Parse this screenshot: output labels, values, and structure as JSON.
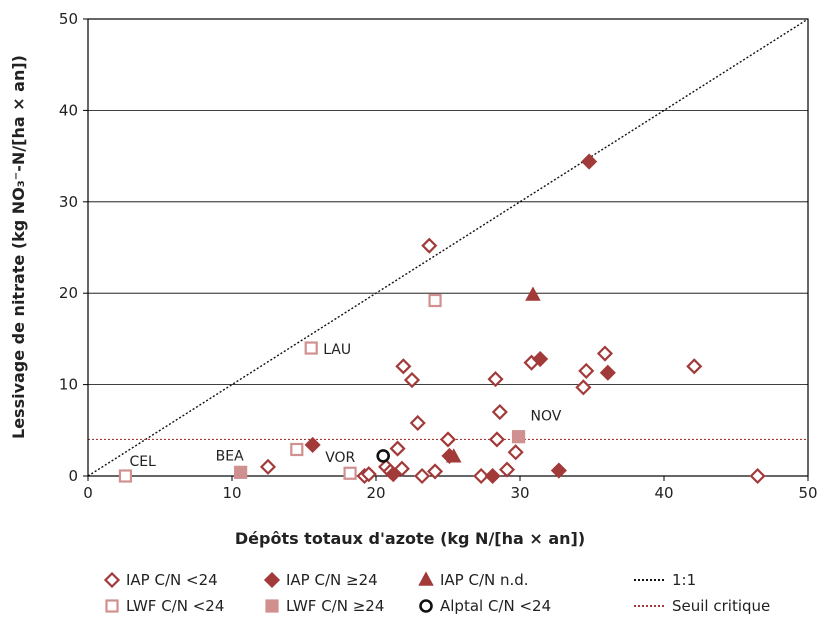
{
  "colors": {
    "dark": "#A23A3A",
    "light": "#D09090",
    "black": "#111111",
    "grid": "#000000",
    "threshold": "#A23A3A"
  },
  "chart_data": {
    "type": "scatter",
    "xlabel": "Dépôts totaux d'azote (kg N/[ha × an])",
    "ylabel": "Lessivage de nitrate (kg NO₃⁻-N/[ha × an])",
    "xlim": [
      0,
      50
    ],
    "ylim": [
      0,
      50
    ],
    "xticks": [
      "0",
      "10",
      "20",
      "30",
      "40",
      "50"
    ],
    "yticks": [
      "0",
      "10",
      "20",
      "30",
      "40",
      "50"
    ],
    "grid": "horizontal",
    "legend_position": "bottom",
    "threshold": 4,
    "series": [
      {
        "name": "IAP C/N <24",
        "marker": "diamond-open",
        "color": "#A23A3A",
        "points": [
          [
            12.5,
            1.0
          ],
          [
            19.2,
            0.0
          ],
          [
            19.5,
            0.2
          ],
          [
            20.7,
            1.0
          ],
          [
            21.0,
            0.5
          ],
          [
            21.5,
            3.0
          ],
          [
            21.8,
            0.8
          ],
          [
            21.9,
            12.0
          ],
          [
            22.5,
            10.5
          ],
          [
            22.9,
            5.8
          ],
          [
            23.2,
            0.0
          ],
          [
            23.7,
            25.2
          ],
          [
            24.1,
            0.5
          ],
          [
            25.0,
            4.0
          ],
          [
            27.3,
            0.0
          ],
          [
            28.3,
            10.6
          ],
          [
            28.4,
            4.0
          ],
          [
            28.6,
            7.0
          ],
          [
            29.1,
            0.7
          ],
          [
            29.7,
            2.6
          ],
          [
            30.8,
            12.4
          ],
          [
            34.4,
            9.7
          ],
          [
            34.6,
            11.5
          ],
          [
            35.9,
            13.4
          ],
          [
            42.1,
            12.0
          ],
          [
            46.5,
            0.0
          ]
        ]
      },
      {
        "name": "IAP C/N ≥24",
        "marker": "diamond-filled",
        "color": "#A23A3A",
        "points": [
          [
            15.6,
            3.4
          ],
          [
            21.2,
            0.2
          ],
          [
            25.1,
            2.2
          ],
          [
            28.1,
            0.0
          ],
          [
            31.4,
            12.8
          ],
          [
            32.7,
            0.6
          ],
          [
            34.8,
            34.4
          ],
          [
            36.1,
            11.3
          ]
        ]
      },
      {
        "name": "IAP C/N n.d.",
        "marker": "triangle",
        "color": "#A23A3A",
        "points": [
          [
            25.4,
            2.1
          ],
          [
            30.9,
            19.8
          ]
        ]
      },
      {
        "name": "LWF C/N <24",
        "marker": "square-open",
        "color": "#D09090",
        "points": [
          [
            2.6,
            0.0
          ],
          [
            14.5,
            2.9
          ],
          [
            15.5,
            14.0
          ],
          [
            18.2,
            0.3
          ],
          [
            24.1,
            19.2
          ]
        ]
      },
      {
        "name": "LWF C/N ≥24",
        "marker": "square-filled",
        "color": "#D09090",
        "points": [
          [
            10.6,
            0.4
          ],
          [
            29.9,
            4.3
          ]
        ]
      },
      {
        "name": "Alptal C/N <24",
        "marker": "circle-open",
        "color": "#111111",
        "points": [
          [
            20.5,
            2.2
          ]
        ]
      }
    ],
    "annotations": [
      {
        "text": "CEL",
        "x": 2.6,
        "y": 0.0
      },
      {
        "text": "BEA",
        "x": 10.6,
        "y": 0.4
      },
      {
        "text": "LAU",
        "x": 15.5,
        "y": 14.0
      },
      {
        "text": "VOR",
        "x": 20.5,
        "y": 2.2
      },
      {
        "text": "NOV",
        "x": 29.9,
        "y": 4.3
      }
    ],
    "legend": [
      {
        "label": "IAP C/N <24",
        "marker": "diamond-open",
        "color": "#A23A3A"
      },
      {
        "label": "IAP C/N ≥24",
        "marker": "diamond-filled",
        "color": "#A23A3A"
      },
      {
        "label": "IAP C/N n.d.",
        "marker": "triangle",
        "color": "#A23A3A"
      },
      {
        "label": "1:1",
        "marker": "dotted-line",
        "color": "#111111"
      },
      {
        "label": "LWF C/N <24",
        "marker": "square-open",
        "color": "#D09090"
      },
      {
        "label": "LWF C/N ≥24",
        "marker": "square-filled",
        "color": "#D09090"
      },
      {
        "label": "Alptal C/N <24",
        "marker": "circle-open",
        "color": "#111111"
      },
      {
        "label": "Seuil critique",
        "marker": "dotted-line",
        "color": "#A23A3A"
      }
    ]
  }
}
